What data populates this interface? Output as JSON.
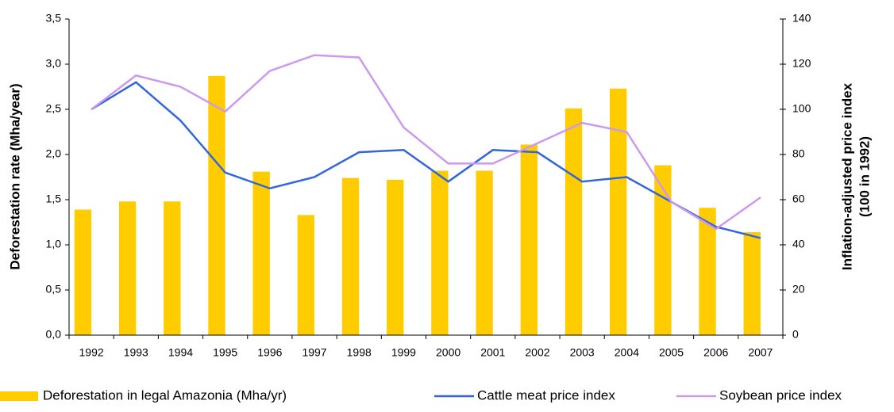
{
  "chart_data": {
    "type": "bar",
    "ylabel": "Deforestation rate (Mha/year)",
    "y2label": [
      "Inflation-adjusted price index",
      "(100 in 1992)"
    ],
    "categories": [
      "1992",
      "1993",
      "1994",
      "1995",
      "1996",
      "1997",
      "1998",
      "1999",
      "2000",
      "2001",
      "2002",
      "2003",
      "2004",
      "2005",
      "2006",
      "2007"
    ],
    "series": [
      {
        "name": "Deforestation in legal Amazonia (Mha/yr)",
        "type": "bar",
        "color": "#ffcc00",
        "values": [
          1.39,
          1.48,
          1.48,
          2.87,
          1.81,
          1.33,
          1.74,
          1.72,
          1.82,
          1.82,
          2.11,
          2.51,
          2.73,
          1.88,
          1.41,
          1.14
        ]
      },
      {
        "name": "Cattle meat price index",
        "type": "line",
        "axis": "y2",
        "color": "#3366dd",
        "values": [
          100,
          112,
          95,
          72,
          65,
          70,
          81,
          82,
          68,
          82,
          81,
          68,
          70,
          59,
          48,
          43
        ]
      },
      {
        "name": "Soybean price index",
        "type": "line",
        "axis": "y2",
        "color": "#cc99ee",
        "values": [
          100,
          115,
          110,
          99,
          117,
          124,
          123,
          92,
          76,
          76,
          85,
          94,
          90,
          59,
          47,
          61
        ]
      }
    ],
    "ylim": [
      0,
      3.5
    ],
    "yticks": [
      {
        "value": 0,
        "label": "0,0"
      },
      {
        "value": 0.5,
        "label": "0,5"
      },
      {
        "value": 1,
        "label": "1,0"
      },
      {
        "value": 1.5,
        "label": "1,5"
      },
      {
        "value": 2,
        "label": "2,0"
      },
      {
        "value": 2.5,
        "label": "2,5"
      },
      {
        "value": 3,
        "label": "3,0"
      },
      {
        "value": 3.5,
        "label": "3,5"
      }
    ],
    "y2lim": [
      0,
      140
    ],
    "y2ticks": [
      0,
      20,
      40,
      60,
      80,
      100,
      120,
      140
    ],
    "grid": false,
    "legend": "bottom"
  }
}
